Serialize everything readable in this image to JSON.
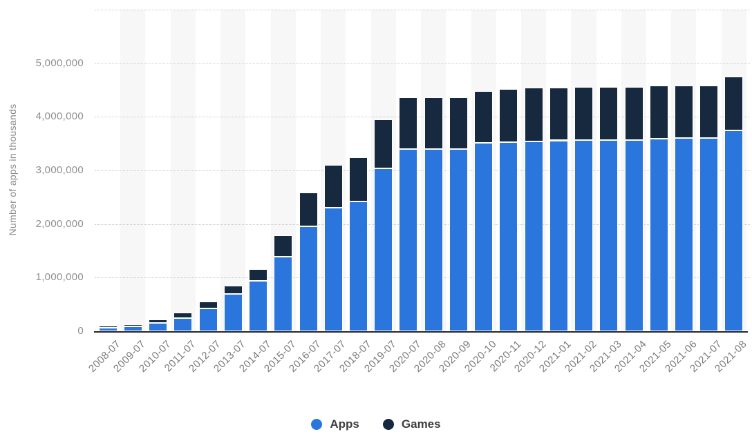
{
  "chart_data": {
    "type": "bar",
    "stacked": true,
    "title": "",
    "xlabel": "",
    "ylabel": "Number of apps in thousands",
    "ylim": [
      0,
      6000000
    ],
    "ytick_interval": 1000000,
    "ytick_labels": [
      "0",
      "1,000,000",
      "2,000,000",
      "3,000,000",
      "4,000,000",
      "5,000,000"
    ],
    "grid": "horizontal-dotted",
    "legend_position": "bottom-center",
    "categories": [
      "2008-07",
      "2009-07",
      "2010-07",
      "2011-07",
      "2012-07",
      "2013-07",
      "2014-07",
      "2015-07",
      "2016-07",
      "2017-07",
      "2018-07",
      "2019-07",
      "2020-07",
      "2020-08",
      "2020-09",
      "2020-10",
      "2020-11",
      "2020-12",
      "2021-01",
      "2021-02",
      "2021-03",
      "2021-04",
      "2021-05",
      "2021-06",
      "2021-07",
      "2021-08"
    ],
    "series": [
      {
        "name": "Apps",
        "color": "#2b76dd",
        "values": [
          60000,
          85000,
          160000,
          245000,
          425000,
          695000,
          945000,
          1390000,
          1960000,
          2305000,
          2425000,
          3040000,
          3400000,
          3400000,
          3400000,
          3510000,
          3530000,
          3545000,
          3560000,
          3570000,
          3565000,
          3570000,
          3590000,
          3600000,
          3600000,
          3745000
        ]
      },
      {
        "name": "Games",
        "color": "#16293f",
        "values": [
          50000,
          45000,
          55000,
          105000,
          125000,
          155000,
          215000,
          400000,
          625000,
          805000,
          825000,
          910000,
          960000,
          965000,
          965000,
          965000,
          985000,
          995000,
          990000,
          985000,
          990000,
          985000,
          990000,
          980000,
          980000,
          1005000
        ]
      }
    ],
    "style": {
      "plot_band_color": "#f7f7f7",
      "gridline_color": "#c9c9c9",
      "axis_line_color": "#262626",
      "tick_label_color": "#8f8f8f",
      "axis_title_color": "#8c8c8c",
      "legend_text_color": "#3f3f3f"
    }
  }
}
